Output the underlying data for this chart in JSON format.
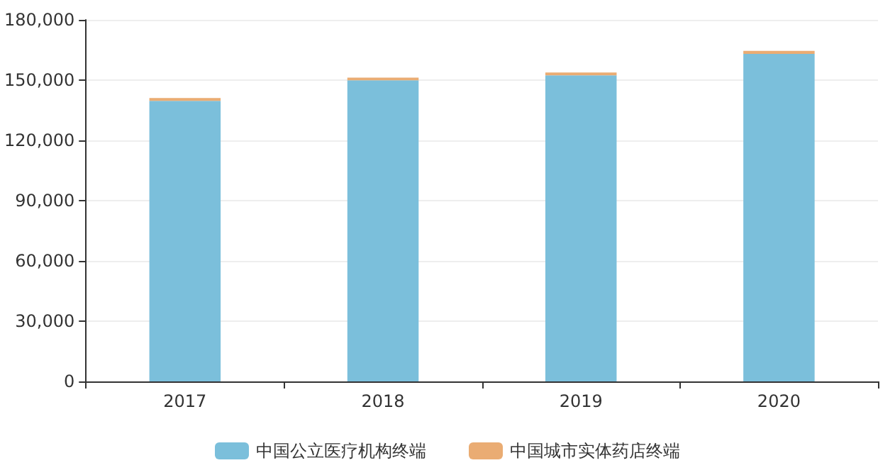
{
  "chart_data": {
    "type": "bar",
    "stacked": true,
    "categories": [
      "2017",
      "2018",
      "2019",
      "2020"
    ],
    "series": [
      {
        "name": "中国公立医疗机构终端",
        "color": "#7bbfdb",
        "values": [
          139700,
          149900,
          152400,
          163100
        ]
      },
      {
        "name": "中国城市实体药店终端",
        "color": "#eaac73",
        "values": [
          1400,
          1300,
          1400,
          1500
        ]
      }
    ],
    "ylim": [
      0,
      180000
    ],
    "yticks": [
      0,
      {
        "value": 30000,
        "label": "30,000"
      },
      {
        "value": 60000,
        "label": "60,000"
      },
      {
        "value": 90000,
        "label": "90,000"
      },
      {
        "value": 120000,
        "label": "120,000"
      },
      {
        "value": 150000,
        "label": "150,000"
      },
      {
        "value": 180000,
        "label": "180,000"
      }
    ],
    "grid": "y",
    "legend": "bottom"
  }
}
